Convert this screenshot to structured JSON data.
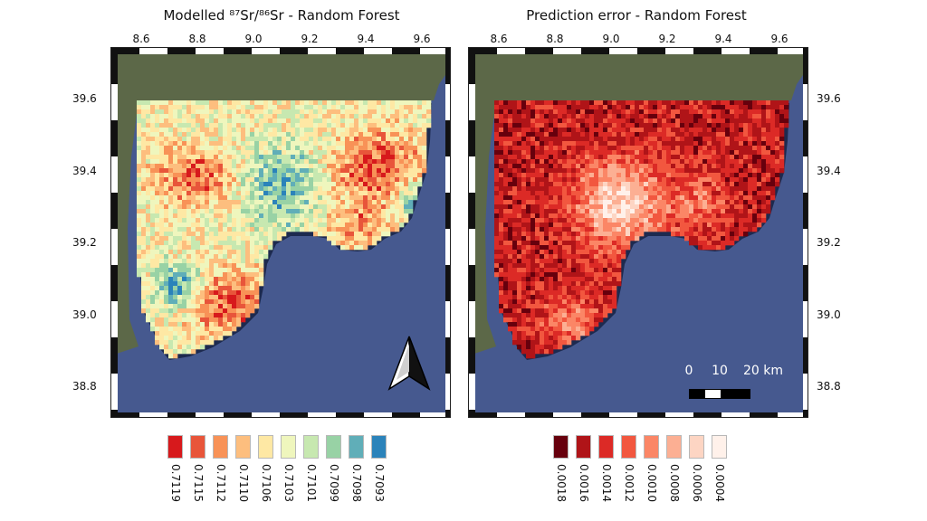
{
  "left_panel": {
    "title": "Modelled ⁸⁷Sr/⁸⁶Sr - Random Forest",
    "x_ticks": [
      "8.6",
      "8.8",
      "9.0",
      "9.2",
      "9.4",
      "9.6"
    ],
    "y_ticks": [
      "39.6",
      "39.4",
      "39.2",
      "39.0",
      "38.8"
    ],
    "legend": [
      {
        "label": "0.7119",
        "color": "#d7191c"
      },
      {
        "label": "0.7115",
        "color": "#e8553a"
      },
      {
        "label": "0.7112",
        "color": "#f89257"
      },
      {
        "label": "0.7110",
        "color": "#fdbe7e"
      },
      {
        "label": "0.7106",
        "color": "#fee8a4"
      },
      {
        "label": "0.7103",
        "color": "#eff6bd"
      },
      {
        "label": "0.7101",
        "color": "#c7e8b0"
      },
      {
        "label": "0.7099",
        "color": "#98d2a5"
      },
      {
        "label": "0.7098",
        "color": "#60aeb8"
      },
      {
        "label": "0.7093",
        "color": "#2b83ba"
      }
    ]
  },
  "right_panel": {
    "title": "Prediction error - Random Forest",
    "x_ticks": [
      "8.6",
      "8.8",
      "9.0",
      "9.2",
      "9.4",
      "9.6"
    ],
    "y_ticks": [
      "39.6",
      "39.4",
      "39.2",
      "39.0",
      "38.8"
    ],
    "legend": [
      {
        "label": "0.0018",
        "color": "#67000d"
      },
      {
        "label": "0.0016",
        "color": "#b01418"
      },
      {
        "label": "0.0014",
        "color": "#dc2a26"
      },
      {
        "label": "0.0012",
        "color": "#f2573f"
      },
      {
        "label": "0.0010",
        "color": "#fb8666"
      },
      {
        "label": "0.0008",
        "color": "#fcaf93"
      },
      {
        "label": "0.0006",
        "color": "#fdd5c3"
      },
      {
        "label": "0.0004",
        "color": "#fff1ea"
      }
    ]
  },
  "scale_bar": {
    "labels": [
      "0",
      "10",
      "20 km"
    ]
  },
  "map_colors": {
    "sea": "#46598f",
    "land": "#5c6848",
    "north_arrow": "#ffffff"
  },
  "icons": {
    "north_arrow": "north-arrow-icon"
  }
}
